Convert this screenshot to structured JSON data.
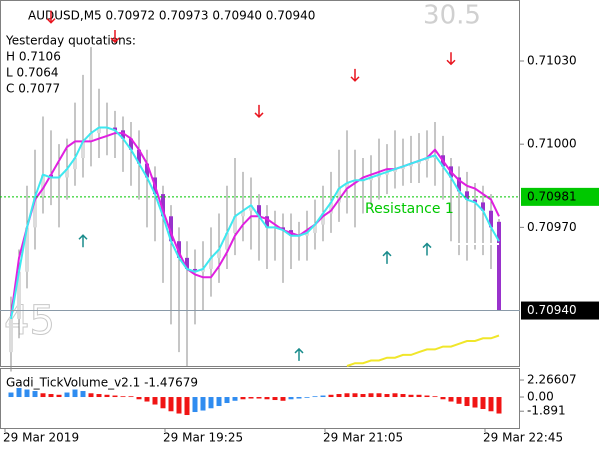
{
  "chart_data": {
    "type": "candlestick",
    "title": "AUDUSD,M5  0.70972 0.70973 0.70940 0.70940",
    "timer": "30.5",
    "countdown": "45",
    "yesterday": {
      "title": "Yesterday quotations:",
      "lines": [
        "H 0.7106",
        "L 0.7064",
        "C 0.7077"
      ]
    },
    "ylim": [
      0.7092,
      0.71052
    ],
    "yticks": [
      {
        "value": 0.7103,
        "label": "0.71030"
      },
      {
        "value": 0.71,
        "label": "0.71000"
      },
      {
        "value": 0.7097,
        "label": "0.70970"
      }
    ],
    "up_color": "#dcdcdc",
    "down_color": "#9932cc",
    "wick_color": "#8c8c8c",
    "open": [
      0.70925,
      0.70937,
      0.70954,
      0.7097,
      0.70981,
      0.70989,
      0.70988,
      0.70988,
      0.70991,
      0.70995,
      0.71001,
      0.71004,
      0.71006,
      0.71006,
      0.71005,
      0.71002,
      0.70998,
      0.70993,
      0.70988,
      0.70982,
      0.70974,
      0.70965,
      0.70959,
      0.70955,
      0.70954,
      0.70955,
      0.70959,
      0.70962,
      0.70968,
      0.70974,
      0.70976,
      0.70978,
      0.70974,
      0.7097,
      0.7097,
      0.70969,
      0.70967,
      0.70967,
      0.70968,
      0.70971,
      0.70975,
      0.70979,
      0.70984,
      0.70986,
      0.70987,
      0.70987,
      0.70988,
      0.70989,
      0.7099,
      0.70991,
      0.70992,
      0.70993,
      0.70994,
      0.70995,
      0.70996,
      0.70992,
      0.70988,
      0.70983,
      0.7098,
      0.70979,
      0.70976,
      0.70972
    ],
    "high": [
      0.70945,
      0.70962,
      0.70985,
      0.70998,
      0.7101,
      0.71005,
      0.71,
      0.71002,
      0.71015,
      0.71025,
      0.71035,
      0.7102,
      0.71015,
      0.71012,
      0.7101,
      0.71008,
      0.71005,
      0.70998,
      0.70992,
      0.70985,
      0.70978,
      0.7097,
      0.70965,
      0.70962,
      0.70965,
      0.7097,
      0.70975,
      0.70985,
      0.70995,
      0.7099,
      0.70988,
      0.70982,
      0.70978,
      0.70976,
      0.70975,
      0.70975,
      0.70972,
      0.70976,
      0.7098,
      0.70985,
      0.7099,
      0.70998,
      0.71005,
      0.70998,
      0.70995,
      0.70996,
      0.71002,
      0.71,
      0.71005,
      0.71002,
      0.71003,
      0.71004,
      0.71005,
      0.71008,
      0.71003,
      0.70995,
      0.70992,
      0.7099,
      0.70986,
      0.70985,
      0.70982,
      0.70973
    ],
    "low": [
      0.70918,
      0.7093,
      0.70948,
      0.70962,
      0.70975,
      0.70978,
      0.7097,
      0.7098,
      0.70985,
      0.70988,
      0.70992,
      0.70995,
      0.70996,
      0.70995,
      0.7099,
      0.70985,
      0.7098,
      0.7097,
      0.70965,
      0.7095,
      0.70935,
      0.70925,
      0.7092,
      0.70935,
      0.7094,
      0.70945,
      0.7095,
      0.70955,
      0.7096,
      0.70965,
      0.70962,
      0.70958,
      0.70955,
      0.70958,
      0.7095,
      0.70955,
      0.70958,
      0.70958,
      0.70962,
      0.70965,
      0.70968,
      0.70972,
      0.70975,
      0.7097,
      0.70975,
      0.70978,
      0.7098,
      0.70982,
      0.70984,
      0.70985,
      0.70986,
      0.70986,
      0.70988,
      0.70985,
      0.7098,
      0.70965,
      0.7096,
      0.70958,
      0.70962,
      0.7096,
      0.70955,
      0.7094
    ],
    "close": [
      0.70937,
      0.70954,
      0.7097,
      0.70981,
      0.70989,
      0.70988,
      0.70988,
      0.70991,
      0.70995,
      0.71001,
      0.71004,
      0.71006,
      0.71006,
      0.71005,
      0.71002,
      0.70998,
      0.70993,
      0.70988,
      0.70982,
      0.70974,
      0.70965,
      0.70959,
      0.70955,
      0.70954,
      0.70955,
      0.70959,
      0.70962,
      0.70968,
      0.70974,
      0.70976,
      0.70978,
      0.70974,
      0.7097,
      0.7097,
      0.70969,
      0.70967,
      0.70967,
      0.70968,
      0.70971,
      0.70975,
      0.70979,
      0.70984,
      0.70986,
      0.70987,
      0.70987,
      0.70988,
      0.70989,
      0.7099,
      0.70991,
      0.70992,
      0.70993,
      0.70994,
      0.70995,
      0.70996,
      0.70992,
      0.70988,
      0.70983,
      0.7098,
      0.70979,
      0.70976,
      0.7097,
      0.7094
    ],
    "lines": [
      {
        "color": "#ffffff",
        "values": [
          null,
          null,
          null,
          null,
          null,
          null,
          null,
          null,
          null,
          null,
          null,
          null,
          null,
          null,
          null,
          null,
          null,
          null,
          null,
          null,
          null,
          null,
          null,
          null,
          null,
          0.70921,
          0.70922,
          0.70923,
          0.70924,
          0.70925,
          0.70927,
          0.70928,
          0.70929,
          0.7093,
          0.70931,
          0.70933,
          0.70936,
          0.70938,
          0.70941,
          0.70944,
          0.70947,
          0.70949,
          0.70952,
          0.70954,
          0.70955,
          0.70956,
          0.70957,
          0.70958,
          0.70959,
          0.7096,
          0.70961,
          0.70961,
          0.70962,
          0.70963,
          0.70963,
          0.70964,
          0.70964,
          0.70964,
          0.70964,
          0.70964,
          0.70964,
          0.70964
        ]
      },
      {
        "color": "#f0e62a",
        "values": [
          null,
          null,
          null,
          null,
          null,
          null,
          null,
          null,
          null,
          null,
          null,
          null,
          null,
          null,
          null,
          null,
          null,
          null,
          null,
          null,
          null,
          null,
          null,
          null,
          null,
          null,
          null,
          null,
          null,
          null,
          null,
          null,
          null,
          null,
          null,
          null,
          null,
          null,
          null,
          null,
          null,
          null,
          0.7092,
          0.70921,
          0.70921,
          0.70922,
          0.70922,
          0.70923,
          0.70923,
          0.70924,
          0.70924,
          0.70925,
          0.70926,
          0.70926,
          0.70927,
          0.70927,
          0.70928,
          0.70929,
          0.70929,
          0.7093,
          0.7093,
          0.70931
        ]
      },
      {
        "color": "#e020e0",
        "values": [
          0.70938,
          0.70959,
          0.7097,
          0.7098,
          0.70984,
          0.70989,
          0.70994,
          0.70999,
          0.71001,
          0.71001,
          0.71001,
          0.71002,
          0.71003,
          0.71004,
          0.71004,
          0.71002,
          0.70998,
          0.70993,
          0.70985,
          0.70976,
          0.70968,
          0.70961,
          0.70955,
          0.70953,
          0.70952,
          0.70952,
          0.70956,
          0.70961,
          0.70967,
          0.70971,
          0.70974,
          0.70974,
          0.70973,
          0.70971,
          0.70969,
          0.70968,
          0.70967,
          0.70969,
          0.70971,
          0.70974,
          0.70976,
          0.7098,
          0.70984,
          0.70986,
          0.70988,
          0.70989,
          0.7099,
          0.70991,
          0.70991,
          0.70992,
          0.70993,
          0.70994,
          0.70995,
          0.70998,
          0.70994,
          0.7099,
          0.70987,
          0.70985,
          0.70984,
          0.70982,
          0.7098,
          0.70974
        ]
      },
      {
        "color": "#3ee8f0",
        "values": [
          0.70937,
          0.70954,
          0.7097,
          0.70981,
          0.70989,
          0.70988,
          0.70988,
          0.70991,
          0.70995,
          0.71001,
          0.71004,
          0.71006,
          0.71006,
          0.71005,
          0.71002,
          0.70998,
          0.70993,
          0.70988,
          0.70982,
          0.70974,
          0.70965,
          0.70959,
          0.70955,
          0.70954,
          0.70955,
          0.70959,
          0.70962,
          0.70968,
          0.70974,
          0.70976,
          0.70978,
          0.70974,
          0.7097,
          0.7097,
          0.70969,
          0.70967,
          0.70967,
          0.70968,
          0.70971,
          0.70975,
          0.70979,
          0.70984,
          0.70986,
          0.70987,
          0.70987,
          0.70988,
          0.70989,
          0.7099,
          0.70991,
          0.70992,
          0.70993,
          0.70994,
          0.70995,
          0.70996,
          0.70992,
          0.70988,
          0.70983,
          0.7098,
          0.70979,
          0.70976,
          0.7097,
          0.70965
        ]
      }
    ],
    "arrows_down": {
      "color": "#e8141e",
      "values": [
        null,
        null,
        null,
        null,
        null,
        0.71046,
        null,
        null,
        null,
        null,
        null,
        null,
        null,
        0.71039,
        null,
        null,
        null,
        null,
        null,
        null,
        null,
        null,
        null,
        null,
        null,
        null,
        null,
        null,
        null,
        null,
        null,
        0.71012,
        null,
        null,
        null,
        null,
        null,
        null,
        null,
        null,
        null,
        null,
        null,
        0.71025,
        null,
        null,
        null,
        null,
        null,
        null,
        null,
        null,
        null,
        null,
        null,
        0.71031,
        null,
        null,
        null,
        null,
        null,
        null
      ]
    },
    "arrows_up": {
      "color": "#1a8c8c",
      "values": [
        null,
        null,
        null,
        null,
        null,
        null,
        null,
        null,
        null,
        0.70965,
        null,
        null,
        null,
        null,
        null,
        null,
        null,
        null,
        null,
        null,
        null,
        null,
        null,
        null,
        null,
        null,
        null,
        null,
        null,
        null,
        null,
        null,
        null,
        null,
        null,
        null,
        0.70924,
        null,
        null,
        null,
        null,
        null,
        null,
        null,
        null,
        null,
        null,
        0.70959,
        null,
        null,
        null,
        null,
        0.70962,
        null,
        null,
        null,
        null,
        null,
        null,
        null,
        null,
        null
      ]
    },
    "levels": [
      {
        "label": "Resistance 1",
        "value": 0.70981,
        "value_label": "0.70981",
        "color": "#00c800"
      }
    ],
    "bid": {
      "value": 0.7094,
      "label": "0.70940"
    },
    "time_labels": [
      "29 Mar 2019",
      "29 Mar 19:25",
      "29 Mar 21:05",
      "29 Mar 22:45"
    ],
    "indicator": {
      "type": "histogram",
      "title": "Gadi_TickVolume_v2.1 -1.47679",
      "ylim": [
        -4.13,
        3.87
      ],
      "yticks": [
        2.26607,
        {
          "value": 0,
          "label": "0.00"
        },
        -1.891
      ],
      "series": [
        {
          "color": "#2f8cf0",
          "values": [
            0.6,
            1.2,
            1.0,
            0.8,
            null,
            null,
            null,
            0.6,
            1.0,
            0.8,
            null,
            null,
            null,
            null,
            null,
            null,
            null,
            null,
            null,
            null,
            null,
            null,
            null,
            -2.0,
            -1.8,
            -1.5,
            -1.2,
            -0.8,
            -0.5,
            null,
            null,
            null,
            null,
            null,
            null,
            -0.3,
            -0.2,
            -0.1,
            0.1,
            0.2,
            null,
            null,
            null,
            null,
            null,
            null,
            null,
            null,
            null,
            null,
            null,
            null,
            null,
            null,
            null,
            null,
            null,
            null,
            null,
            null,
            null,
            null
          ]
        },
        {
          "color": "#f01414",
          "values": [
            null,
            null,
            null,
            null,
            0.5,
            0.4,
            0.3,
            null,
            null,
            null,
            0.5,
            0.4,
            0.3,
            0.2,
            0.1,
            0.1,
            -0.3,
            -0.6,
            -1.0,
            -1.5,
            -1.9,
            -2.2,
            -2.4,
            null,
            null,
            null,
            null,
            null,
            null,
            -0.3,
            -0.2,
            -0.2,
            -0.3,
            -0.4,
            -0.5,
            null,
            null,
            null,
            null,
            null,
            0.3,
            0.4,
            0.5,
            0.5,
            0.4,
            0.5,
            0.5,
            0.4,
            0.5,
            0.4,
            0.3,
            0.3,
            0.2,
            0.1,
            -0.3,
            -0.6,
            -0.9,
            -1.2,
            -1.4,
            -1.6,
            -1.9,
            -2.2
          ]
        }
      ]
    }
  }
}
